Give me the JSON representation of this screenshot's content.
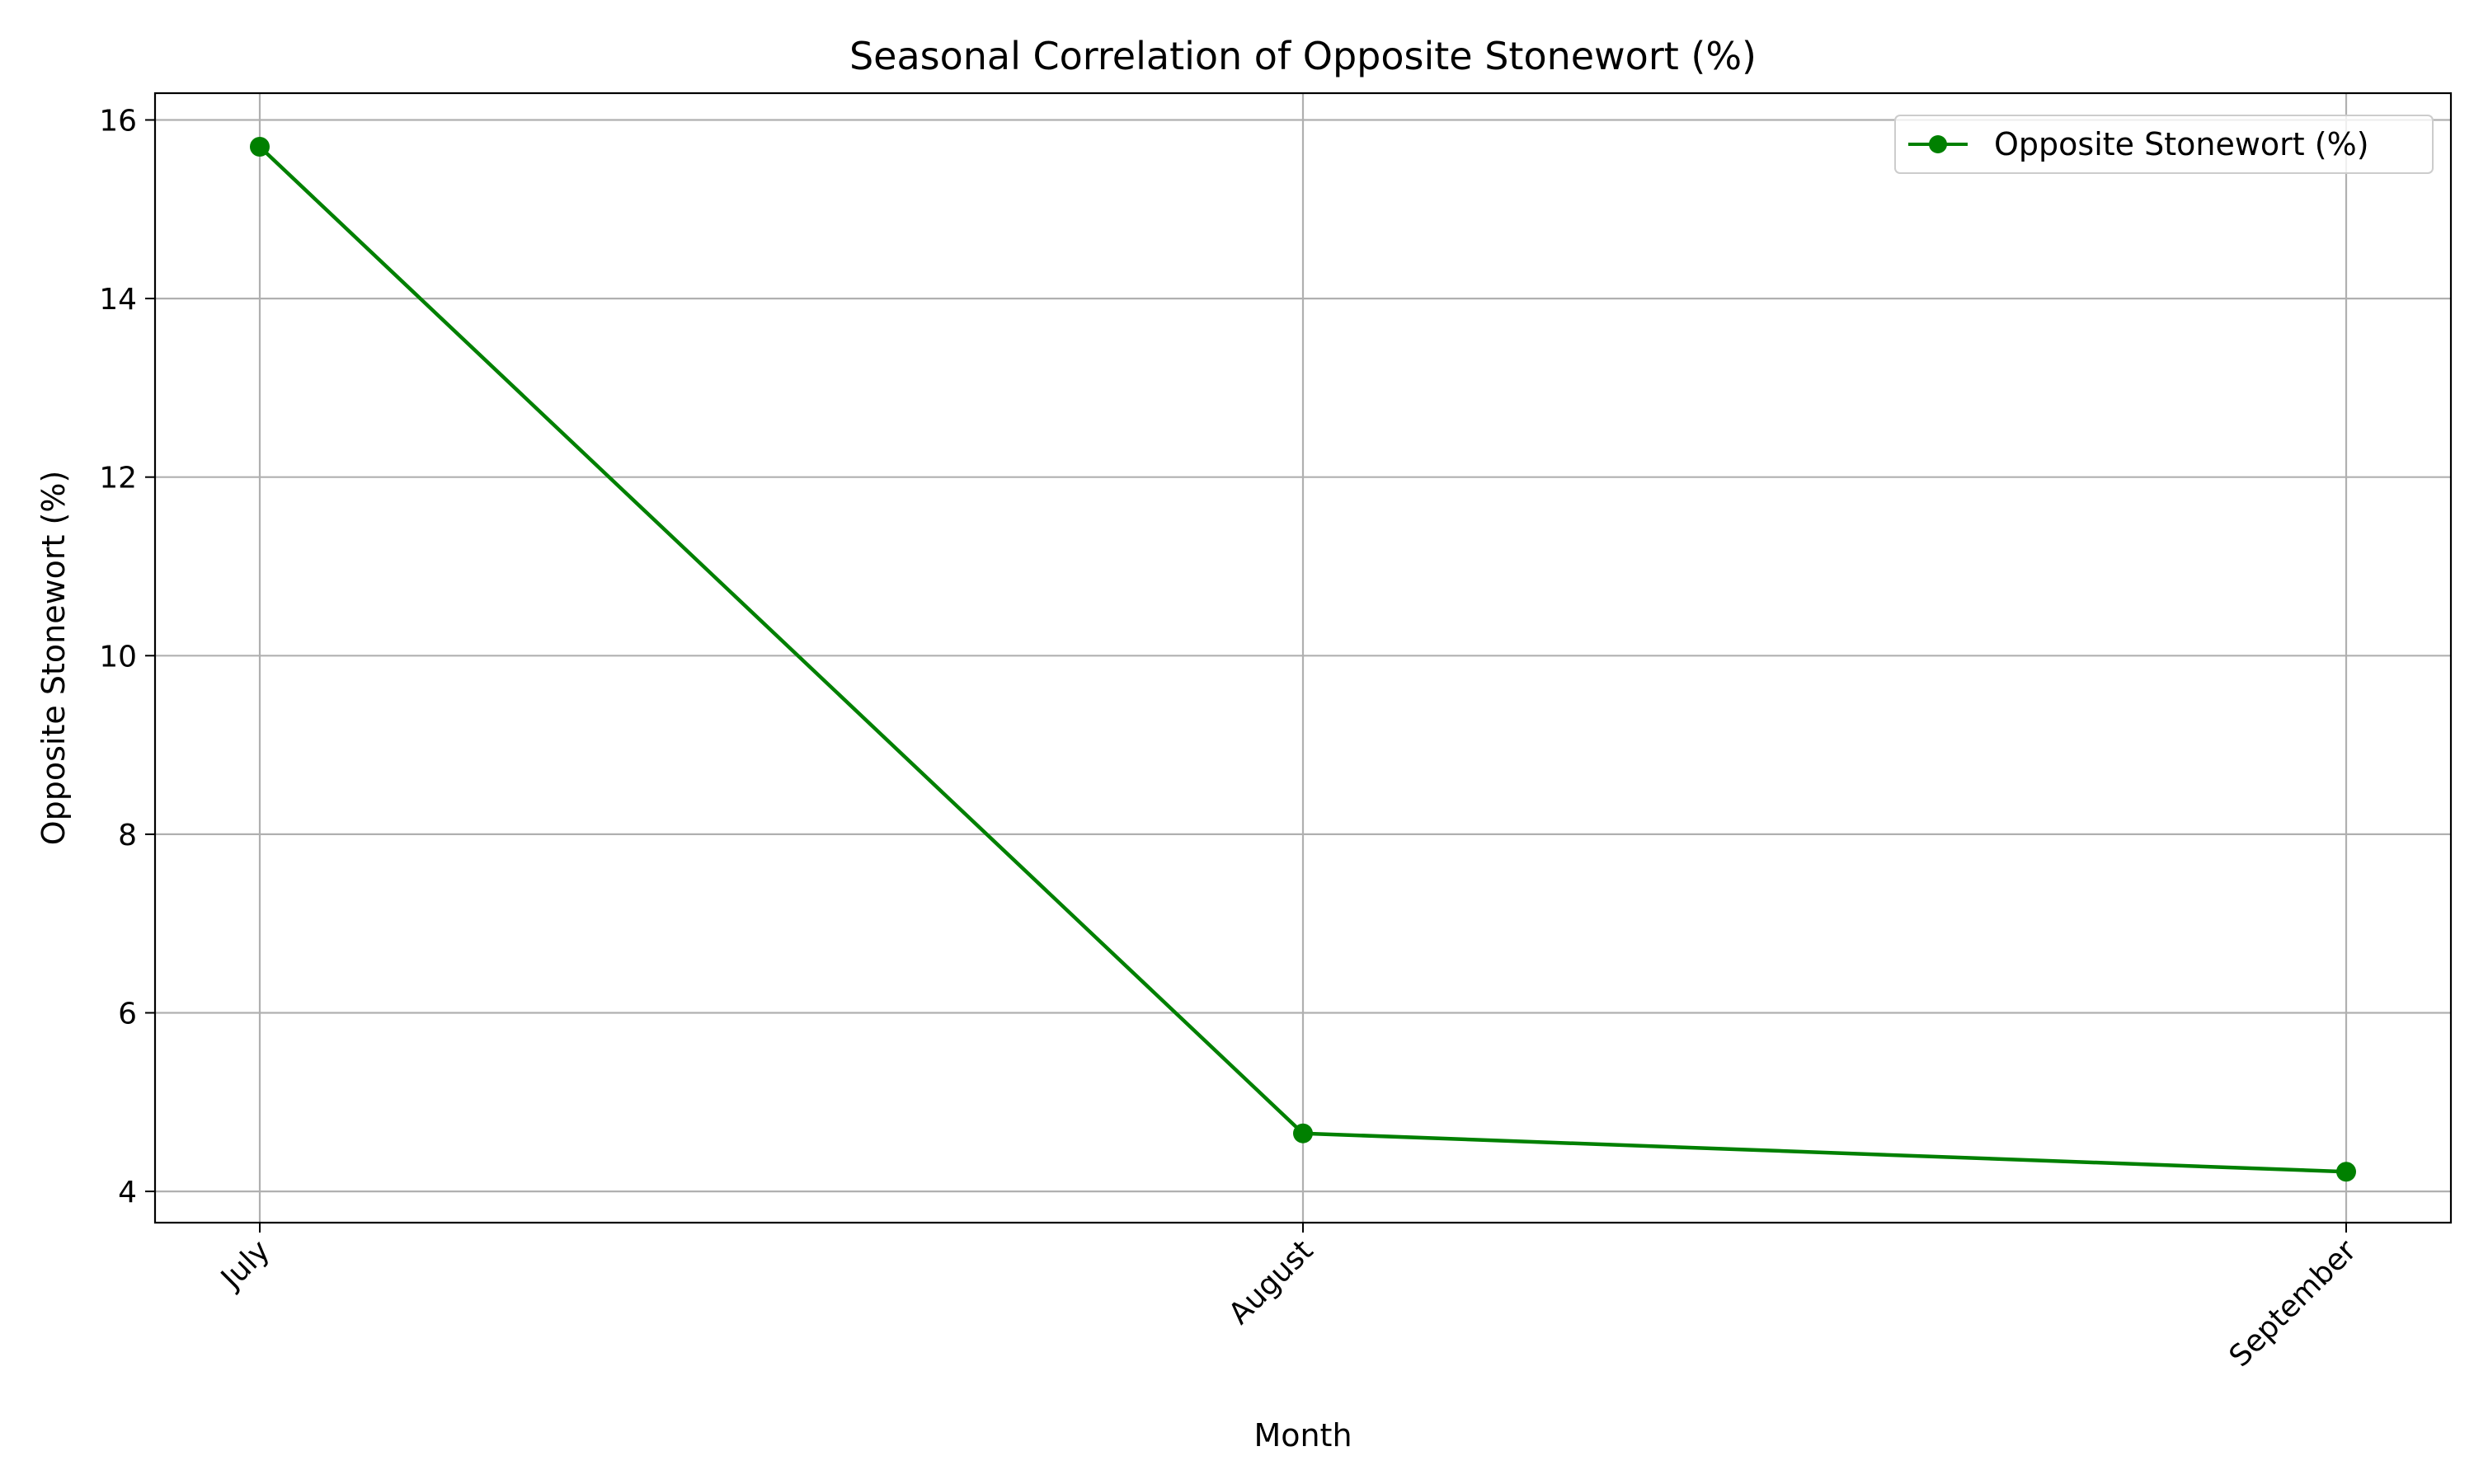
{
  "chart_data": {
    "type": "line",
    "title": "Seasonal Correlation of Opposite Stonewort (%)",
    "xlabel": "Month",
    "ylabel": "Opposite Stonewort (%)",
    "categories": [
      "July",
      "August",
      "September"
    ],
    "series": [
      {
        "name": "Opposite Stonewort (%)",
        "values": [
          15.7,
          4.65,
          4.22
        ],
        "color": "#008000",
        "marker": "circle"
      }
    ],
    "ylim": [
      3.65,
      16.3
    ],
    "yticks": [
      4,
      6,
      8,
      10,
      12,
      14,
      16
    ],
    "grid": true,
    "legend_position": "top-right",
    "xtick_rotation": 45
  }
}
